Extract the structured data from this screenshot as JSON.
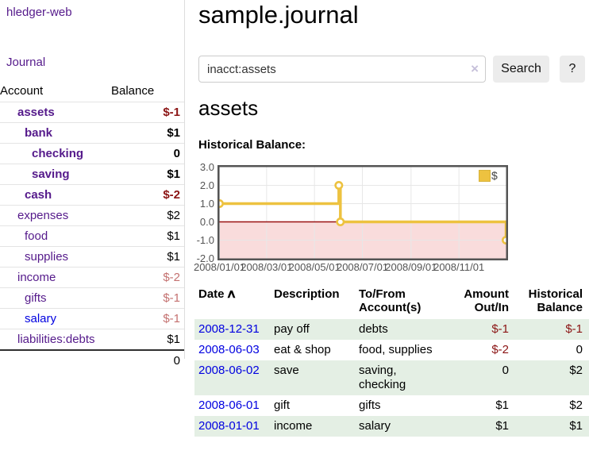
{
  "sidebar": {
    "brand": "hledger-web",
    "nav": {
      "journal": "Journal"
    },
    "table": {
      "account_header": "Account",
      "balance_header": "Balance"
    },
    "accounts": [
      {
        "name": "assets",
        "indent": 1,
        "bold": true,
        "balance": "$-1",
        "balance_style": "neg-strong"
      },
      {
        "name": "bank",
        "indent": 2,
        "bold": true,
        "balance": "$1",
        "balance_style": "pos"
      },
      {
        "name": "checking",
        "indent": 3,
        "bold": true,
        "balance": "0",
        "balance_style": "pos"
      },
      {
        "name": "saving",
        "indent": 3,
        "bold": true,
        "balance": "$1",
        "balance_style": "pos"
      },
      {
        "name": "cash",
        "indent": 2,
        "bold": true,
        "balance": "$-2",
        "balance_style": "neg-strong"
      },
      {
        "name": "expenses",
        "indent": 1,
        "bold": false,
        "balance": "$2",
        "balance_style": "pos"
      },
      {
        "name": "food",
        "indent": 2,
        "bold": false,
        "balance": "$1",
        "balance_style": "pos"
      },
      {
        "name": "supplies",
        "indent": 2,
        "bold": false,
        "balance": "$1",
        "balance_style": "pos"
      },
      {
        "name": "income",
        "indent": 1,
        "bold": false,
        "balance": "$-2",
        "balance_style": "neg-soft"
      },
      {
        "name": "gifts",
        "indent": 2,
        "bold": false,
        "balance": "$-1",
        "balance_style": "neg-soft"
      },
      {
        "name": "salary",
        "indent": 2,
        "bold": false,
        "link_color": "blue",
        "balance": "$-1",
        "balance_style": "neg-soft"
      },
      {
        "name": "liabilities:debts",
        "indent": 1,
        "bold": false,
        "balance": "$1",
        "balance_style": "pos"
      }
    ],
    "total": "0"
  },
  "main": {
    "title": "sample.journal",
    "search": {
      "value": "inacct:assets",
      "clear_icon": "×",
      "search_button": "Search",
      "help_button": "?"
    },
    "account_title": "assets",
    "chart_label": "Historical Balance:"
  },
  "chart_data": {
    "type": "line",
    "step": true,
    "title": "Historical Balance:",
    "series": [
      {
        "name": "$",
        "color": "#edc240",
        "points": [
          [
            "2008-01-01",
            1
          ],
          [
            "2008-06-01",
            2
          ],
          [
            "2008-06-03",
            0
          ],
          [
            "2008-12-31",
            -1
          ]
        ]
      }
    ],
    "x_ticks": [
      {
        "date": "2008-01-01",
        "label": "2008/01/01"
      },
      {
        "date": "2008-03-01",
        "label": "2008/03/01"
      },
      {
        "date": "2008-05-01",
        "label": "2008/05/01"
      },
      {
        "date": "2008-07-01",
        "label": "2008/07/01"
      },
      {
        "date": "2008-09-01",
        "label": "2008/09/01"
      },
      {
        "date": "2008-11-01",
        "label": "2008/11/01"
      }
    ],
    "y_ticks": [
      "3.0",
      "2.0",
      "1.0",
      "0.0",
      "-1.0",
      "-2.0"
    ],
    "xlim": [
      "2008-01-01",
      "2008-12-31"
    ],
    "ylim": [
      -2,
      3
    ],
    "legend": {
      "label": "$",
      "position": "top-right"
    },
    "grid": true,
    "zero_line_color": "#991111",
    "negative_region_color": "#f9dcdc"
  },
  "register": {
    "columns": {
      "date": "Date",
      "sort_icon": "∧",
      "description": "Description",
      "accounts": "To/From Account(s)",
      "amount": "Amount Out/In",
      "balance": "Historical Balance"
    },
    "rows": [
      {
        "date": "2008-12-31",
        "description": "pay off",
        "accounts": "debts",
        "amount": "$-1",
        "amount_negative": true,
        "balance": "$-1",
        "balance_negative": true,
        "shaded": true
      },
      {
        "date": "2008-06-03",
        "description": "eat & shop",
        "accounts": "food, supplies",
        "amount": "$-2",
        "amount_negative": true,
        "balance": "0",
        "balance_negative": false,
        "shaded": false
      },
      {
        "date": "2008-06-02",
        "description": "save",
        "accounts": "saving, checking",
        "amount": "0",
        "amount_negative": false,
        "balance": "$2",
        "balance_negative": false,
        "shaded": true
      },
      {
        "date": "2008-06-01",
        "description": "gift",
        "accounts": "gifts",
        "amount": "$1",
        "amount_negative": false,
        "balance": "$2",
        "balance_negative": false,
        "shaded": false
      },
      {
        "date": "2008-01-01",
        "description": "income",
        "accounts": "salary",
        "amount": "$1",
        "amount_negative": false,
        "balance": "$1",
        "balance_negative": false,
        "shaded": true
      }
    ]
  },
  "colors": {
    "link_purple": "#551a8b",
    "link_blue": "#0000e0",
    "negative_strong": "#8b1414",
    "negative_soft": "#c47170",
    "row_shade_green": "#e4efe4",
    "chart_line_gold": "#edc240",
    "chart_negative_fill": "#f9dcdc",
    "chart_zero_line": "#991111",
    "chart_border_gray": "#545454",
    "button_gray": "#ececec"
  }
}
